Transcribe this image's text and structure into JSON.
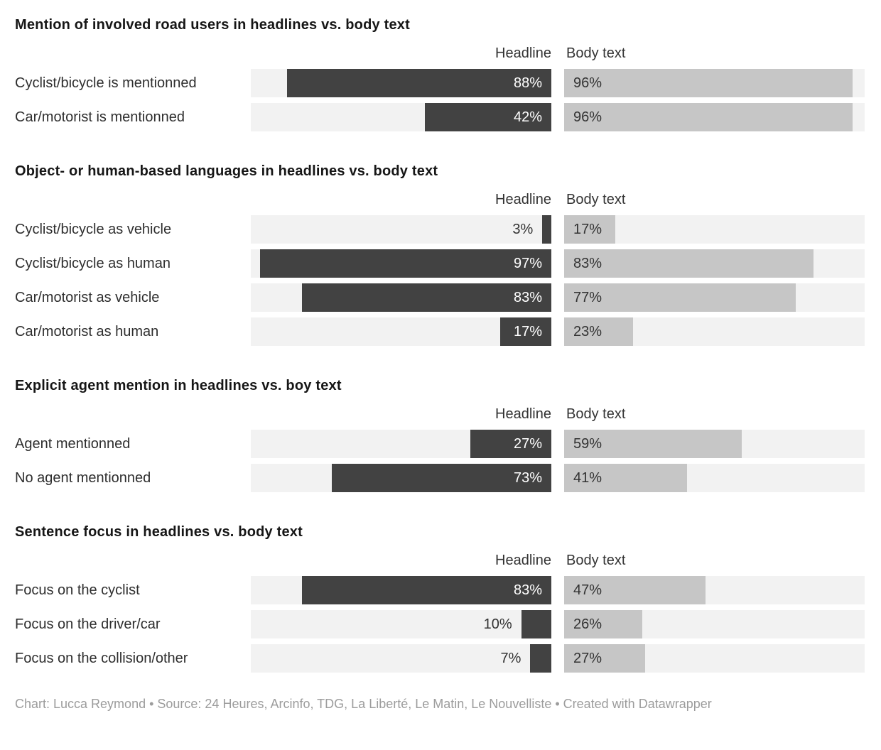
{
  "colors": {
    "headline_bar": "#424242",
    "body_bar": "#c6c6c6",
    "bar_track": "#f2f2f2",
    "value_on_dark": "#ffffff",
    "value_on_light": "#333333",
    "footer_text": "#9c9c9c"
  },
  "column_headers": {
    "headline": "Headline",
    "body": "Body text"
  },
  "chart_data": [
    {
      "type": "bar",
      "title": "Mention of involved road users in headlines vs. body text",
      "categories": [
        "Cyclist/bicycle is mentionned",
        "Car/motorist is mentionned"
      ],
      "series": [
        {
          "name": "Headline",
          "values": [
            88,
            42
          ]
        },
        {
          "name": "Body text",
          "values": [
            96,
            96
          ]
        }
      ],
      "unit": "%",
      "xlim": [
        0,
        100
      ],
      "grid": false,
      "legend_position": "column-headers"
    },
    {
      "type": "bar",
      "title": "Object- or human-based languages in headlines vs. body text",
      "categories": [
        "Cyclist/bicycle as vehicle",
        "Cyclist/bicycle as human",
        "Car/motorist as vehicle",
        "Car/motorist as human"
      ],
      "series": [
        {
          "name": "Headline",
          "values": [
            3,
            97,
            83,
            17
          ]
        },
        {
          "name": "Body text",
          "values": [
            17,
            83,
            77,
            23
          ]
        }
      ],
      "unit": "%",
      "xlim": [
        0,
        100
      ],
      "grid": false,
      "legend_position": "column-headers"
    },
    {
      "type": "bar",
      "title": "Explicit agent mention in headlines vs. boy text",
      "categories": [
        "Agent mentionned",
        "No agent mentionned"
      ],
      "series": [
        {
          "name": "Headline",
          "values": [
            27,
            73
          ]
        },
        {
          "name": "Body text",
          "values": [
            59,
            41
          ]
        }
      ],
      "unit": "%",
      "xlim": [
        0,
        100
      ],
      "grid": false,
      "legend_position": "column-headers"
    },
    {
      "type": "bar",
      "title": "Sentence focus in headlines vs. body text",
      "categories": [
        "Focus on the cyclist",
        "Focus on the driver/car",
        "Focus on the collision/other"
      ],
      "series": [
        {
          "name": "Headline",
          "values": [
            83,
            10,
            7
          ]
        },
        {
          "name": "Body text",
          "values": [
            47,
            26,
            27
          ]
        }
      ],
      "unit": "%",
      "xlim": [
        0,
        100
      ],
      "grid": false,
      "legend_position": "column-headers"
    }
  ],
  "footer": {
    "text": "Chart: Lucca Reymond • Source: 24 Heures, Arcinfo, TDG, La Liberté, Le Matin, Le Nouvelliste • Created with Datawrapper"
  }
}
